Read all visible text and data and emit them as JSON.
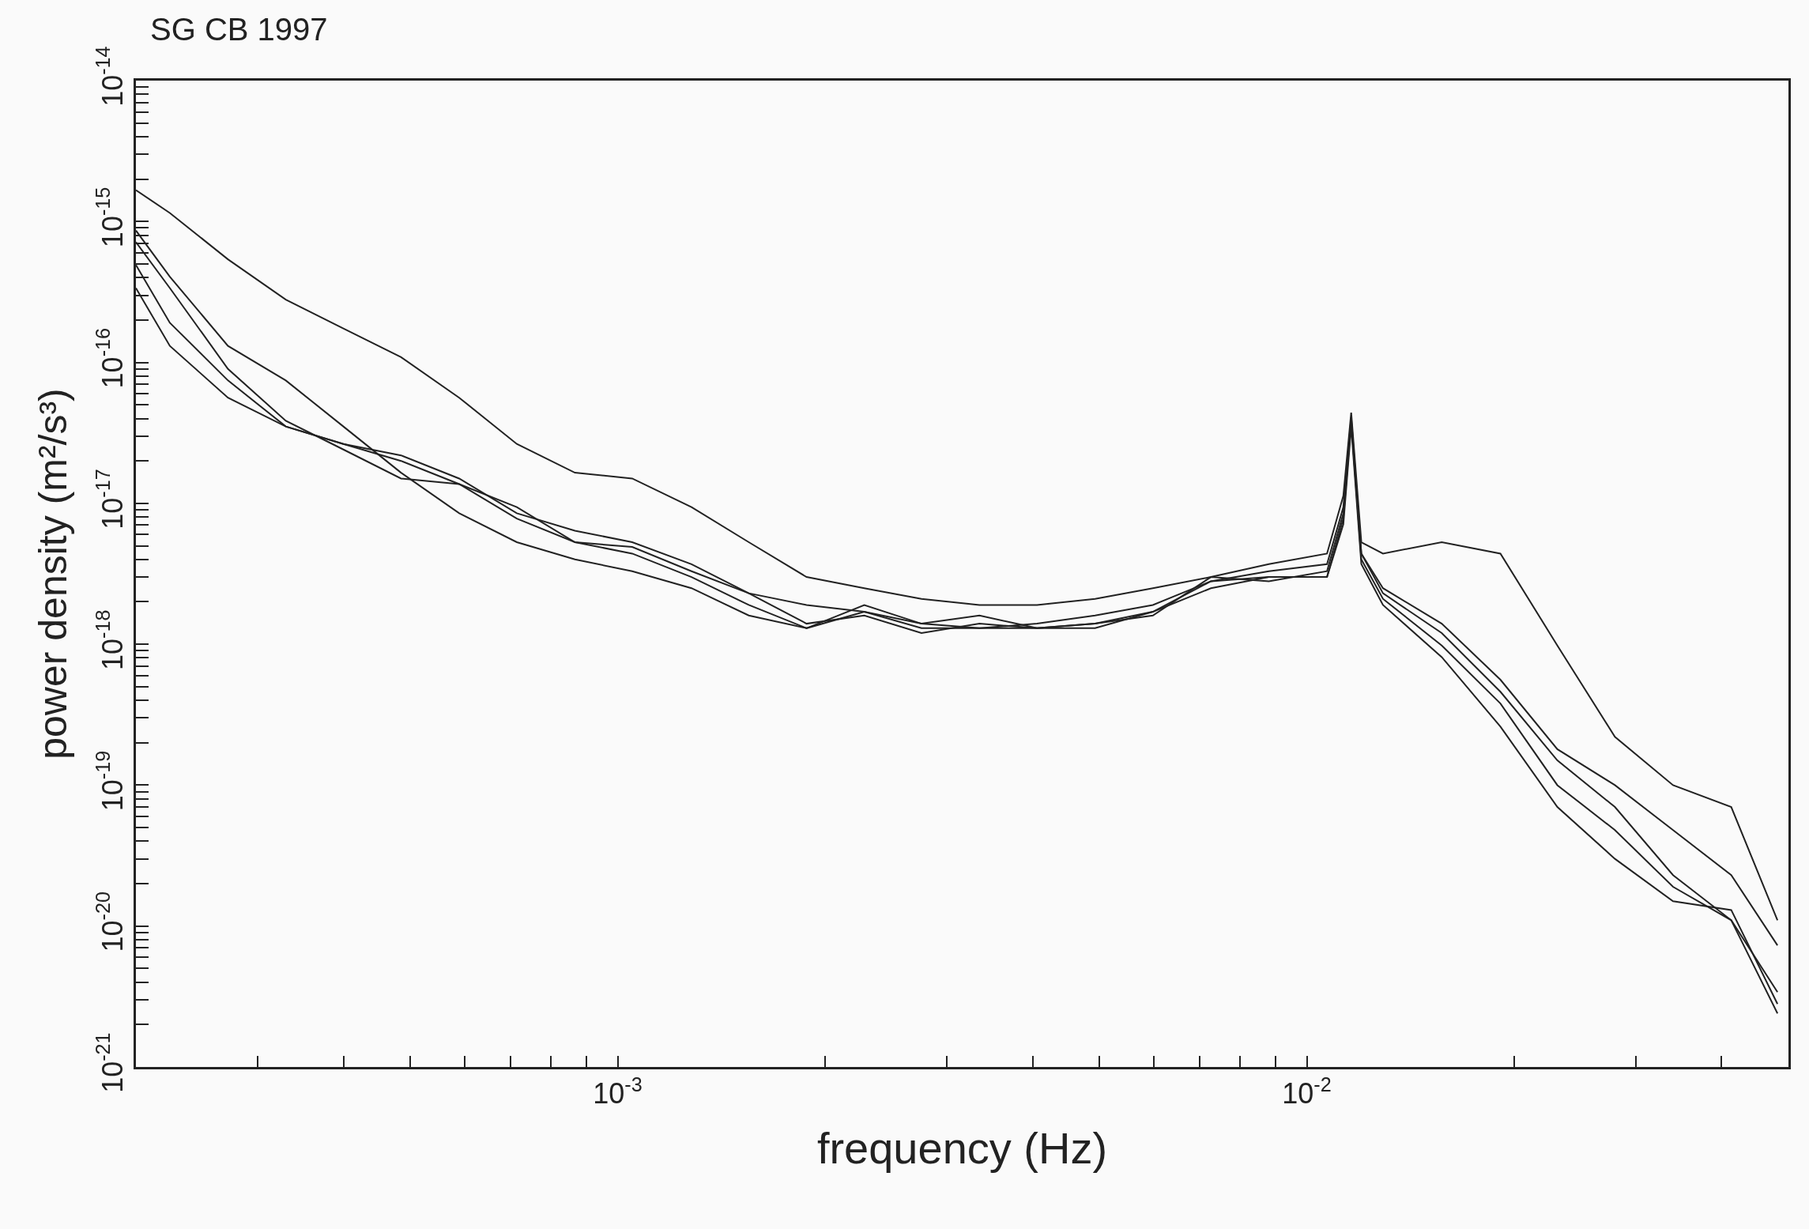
{
  "chart_data": {
    "type": "line",
    "title": "SG CB 1997",
    "xlabel": "frequency (Hz)",
    "ylabel": "power density (m²/s³)",
    "log": "xy",
    "grid": false,
    "xlim": [
      0.0002,
      0.05
    ],
    "ylim": [
      1e-21,
      1e-14
    ],
    "xticks": [
      {
        "value": 0.0002,
        "label": null
      },
      {
        "value": 0.0003,
        "label": null
      },
      {
        "value": 0.0004,
        "label": null
      },
      {
        "value": 0.0005,
        "label": null
      },
      {
        "value": 0.0006,
        "label": null
      },
      {
        "value": 0.0007,
        "label": null
      },
      {
        "value": 0.0008,
        "label": null
      },
      {
        "value": 0.0009,
        "label": null
      },
      {
        "value": 0.001,
        "label": "10$^{-3}$"
      },
      {
        "value": 0.002,
        "label": null
      },
      {
        "value": 0.003,
        "label": null
      },
      {
        "value": 0.004,
        "label": null
      },
      {
        "value": 0.005,
        "label": null
      },
      {
        "value": 0.006,
        "label": null
      },
      {
        "value": 0.007,
        "label": null
      },
      {
        "value": 0.008,
        "label": null
      },
      {
        "value": 0.009,
        "label": null
      },
      {
        "value": 0.01,
        "label": "10$^{-2}$"
      },
      {
        "value": 0.02,
        "label": null
      },
      {
        "value": 0.03,
        "label": null
      },
      {
        "value": 0.04,
        "label": null
      }
    ],
    "yticks": [
      {
        "value": 1e-21,
        "label": "10$^{-21}$"
      },
      {
        "value": 2e-21,
        "label": null
      },
      {
        "value": 3e-21,
        "label": null
      },
      {
        "value": 4e-21,
        "label": null
      },
      {
        "value": 5e-21,
        "label": null
      },
      {
        "value": 6e-21,
        "label": null
      },
      {
        "value": 7e-21,
        "label": null
      },
      {
        "value": 8e-21,
        "label": null
      },
      {
        "value": 9e-21,
        "label": null
      },
      {
        "value": 1e-20,
        "label": "10$^{-20}$"
      },
      {
        "value": 2e-20,
        "label": null
      },
      {
        "value": 3e-20,
        "label": null
      },
      {
        "value": 4e-20,
        "label": null
      },
      {
        "value": 5e-20,
        "label": null
      },
      {
        "value": 6e-20,
        "label": null
      },
      {
        "value": 7e-20,
        "label": null
      },
      {
        "value": 8e-20,
        "label": null
      },
      {
        "value": 9e-20,
        "label": null
      },
      {
        "value": 1e-19,
        "label": "10$^{-19}$"
      },
      {
        "value": 2e-19,
        "label": null
      },
      {
        "value": 3e-19,
        "label": null
      },
      {
        "value": 4e-19,
        "label": null
      },
      {
        "value": 5e-19,
        "label": null
      },
      {
        "value": 6e-19,
        "label": null
      },
      {
        "value": 7e-19,
        "label": null
      },
      {
        "value": 8e-19,
        "label": null
      },
      {
        "value": 9e-19,
        "label": null
      },
      {
        "value": 1e-18,
        "label": "10$^{-18}$"
      },
      {
        "value": 2e-18,
        "label": null
      },
      {
        "value": 3e-18,
        "label": null
      },
      {
        "value": 4e-18,
        "label": null
      },
      {
        "value": 5e-18,
        "label": null
      },
      {
        "value": 6e-18,
        "label": null
      },
      {
        "value": 7e-18,
        "label": null
      },
      {
        "value": 8e-18,
        "label": null
      },
      {
        "value": 9e-18,
        "label": null
      },
      {
        "value": 1e-17,
        "label": "10$^{-17}$"
      },
      {
        "value": 2e-17,
        "label": null
      },
      {
        "value": 3e-17,
        "label": null
      },
      {
        "value": 4e-17,
        "label": null
      },
      {
        "value": 5e-17,
        "label": null
      },
      {
        "value": 6e-17,
        "label": null
      },
      {
        "value": 7e-17,
        "label": null
      },
      {
        "value": 8e-17,
        "label": null
      },
      {
        "value": 9e-17,
        "label": null
      },
      {
        "value": 1e-16,
        "label": "10$^{-16}$"
      },
      {
        "value": 2e-16,
        "label": null
      },
      {
        "value": 3e-16,
        "label": null
      },
      {
        "value": 4e-16,
        "label": null
      },
      {
        "value": 5e-16,
        "label": null
      },
      {
        "value": 6e-16,
        "label": null
      },
      {
        "value": 7e-16,
        "label": null
      },
      {
        "value": 8e-16,
        "label": null
      },
      {
        "value": 9e-16,
        "label": null
      },
      {
        "value": 1e-15,
        "label": "10$^{-15}$"
      },
      {
        "value": 2e-15,
        "label": null
      },
      {
        "value": 3e-15,
        "label": null
      },
      {
        "value": 4e-15,
        "label": null
      },
      {
        "value": 5e-15,
        "label": null
      },
      {
        "value": 6e-15,
        "label": null
      },
      {
        "value": 7e-15,
        "label": null
      },
      {
        "value": 8e-15,
        "label": null
      },
      {
        "value": 9e-15,
        "label": null
      },
      {
        "value": 1e-14,
        "label": "10$^{-14}$"
      }
    ],
    "x": [
      0.0002,
      0.000224,
      0.000272,
      0.00033,
      0.0004,
      0.000485,
      0.000589,
      0.000714,
      0.000867,
      0.00105,
      0.00128,
      0.00155,
      0.00188,
      0.00228,
      0.00276,
      0.00335,
      0.00406,
      0.00493,
      0.00598,
      0.00726,
      0.00881,
      0.0107,
      0.0113,
      0.0116,
      0.012,
      0.0129,
      0.0157,
      0.0191,
      0.0231,
      0.028,
      0.034,
      0.0413,
      0.0482
    ],
    "series": [
      {
        "color": "#222222",
        "values": [
          1.67e-15,
          1.15e-15,
          5.39e-16,
          2.79e-16,
          1.74e-16,
          1.09e-16,
          5.62e-17,
          2.64e-17,
          1.65e-17,
          1.5e-17,
          9.4e-18,
          5.3e-18,
          3e-18,
          2.5e-18,
          2.1e-18,
          1.9e-18,
          1.9e-18,
          2.1e-18,
          2.5e-18,
          3e-18,
          3.7e-18,
          4.4e-18,
          1.13e-17,
          4.4e-17,
          5.3e-18,
          4.4e-18,
          5.3e-18,
          4.4e-18,
          9.8e-19,
          2.2e-19,
          1e-19,
          7e-20,
          1.1e-20
        ]
      },
      {
        "color": "#222222",
        "values": [
          7.15e-16,
          3.37e-16,
          9e-17,
          3.85e-17,
          2.41e-17,
          1.5e-17,
          1.37e-17,
          9.4e-18,
          5.3e-18,
          4.4e-18,
          3e-18,
          1.9e-18,
          1.3e-18,
          1.7e-18,
          1.4e-18,
          1.3e-18,
          1.4e-18,
          1.6e-18,
          1.9e-18,
          2.8e-18,
          3.3e-18,
          3.7e-18,
          9.4e-18,
          4.07e-17,
          4.4e-18,
          2.5e-18,
          1.4e-18,
          5.6e-19,
          1.8e-19,
          1e-19,
          4.8e-20,
          2.3e-20,
          7.3e-21
        ]
      },
      {
        "color": "#222222",
        "values": [
          4.91e-16,
          1.91e-16,
          7.45e-17,
          3.51e-17,
          2.64e-17,
          2.19e-17,
          1.5e-17,
          8.5e-18,
          6.4e-18,
          5.3e-18,
          3.7e-18,
          2.3e-18,
          1.4e-18,
          1.6e-18,
          1.2e-18,
          1.4e-18,
          1.3e-18,
          1.4e-18,
          1.7e-18,
          2.5e-18,
          3e-18,
          3e-18,
          7.8e-18,
          3.85e-17,
          4e-18,
          2.1e-18,
          9.8e-19,
          3.8e-19,
          1e-19,
          4.8e-20,
          1.9e-20,
          1.1e-20,
          3.4e-21
        ]
      },
      {
        "color": "#222222",
        "values": [
          3.37e-16,
          1.31e-16,
          5.62e-17,
          3.51e-17,
          2.64e-17,
          2e-17,
          1.37e-17,
          7.8e-18,
          5.3e-18,
          4.9e-18,
          3.3e-18,
          2.3e-18,
          1.9e-18,
          1.7e-18,
          1.3e-18,
          1.3e-18,
          1.3e-18,
          1.3e-18,
          1.7e-18,
          2.8e-18,
          3e-18,
          3e-18,
          7.1e-18,
          3.51e-17,
          3.7e-18,
          1.9e-18,
          8.1e-19,
          2.6e-19,
          7e-20,
          3e-20,
          1.5e-20,
          1.3e-20,
          2.8e-21
        ]
      },
      {
        "color": "#222222",
        "values": [
          8.63e-16,
          4.06e-16,
          1.31e-16,
          7.45e-17,
          3.51e-17,
          1.65e-17,
          8.5e-18,
          5.3e-18,
          4e-18,
          3.3e-18,
          2.5e-18,
          1.6e-18,
          1.3e-18,
          1.9e-18,
          1.4e-18,
          1.6e-18,
          1.3e-18,
          1.4e-18,
          1.6e-18,
          3e-18,
          2.8e-18,
          3.3e-18,
          8.5e-18,
          3.85e-17,
          4.4e-18,
          2.3e-18,
          1.2e-18,
          4.6e-19,
          1.5e-19,
          7e-20,
          2.3e-20,
          1.1e-20,
          2.4e-21
        ]
      }
    ]
  }
}
